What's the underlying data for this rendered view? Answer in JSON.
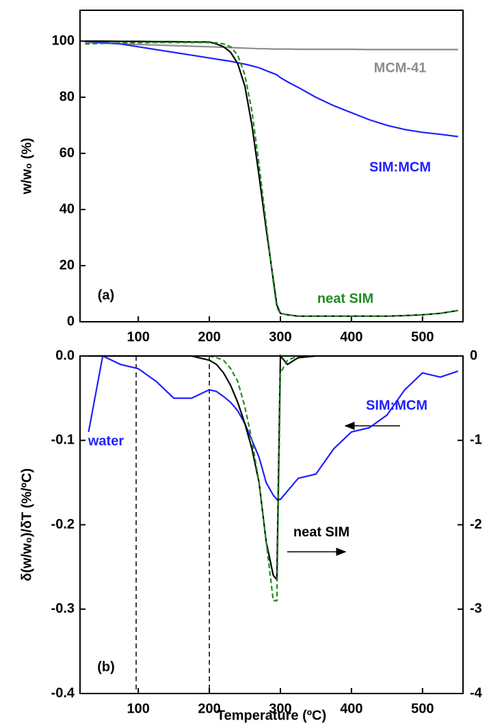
{
  "chart_data": [
    {
      "type": "line",
      "ylabel": "w/w₀ (%)",
      "panel_label": "(a)",
      "x": [
        25,
        50,
        75,
        100,
        125,
        150,
        175,
        200,
        210,
        220,
        230,
        240,
        250,
        260,
        270,
        280,
        290,
        295,
        300,
        310,
        325,
        350,
        375,
        400,
        425,
        450,
        475,
        500,
        525,
        550
      ],
      "xlim": [
        18,
        557
      ],
      "xticks": [
        100,
        200,
        300,
        400,
        500
      ],
      "ylim": [
        0,
        111
      ],
      "yticks": [
        0,
        20,
        40,
        60,
        80,
        100
      ],
      "series": [
        {
          "name": "MCM-41",
          "color": "#8c8c8c",
          "values": [
            99.5,
            99.3,
            99,
            98.8,
            98.6,
            98.4,
            98.2,
            98,
            97.9,
            97.8,
            97.7,
            97.6,
            97.5,
            97.4,
            97.3,
            97.3,
            97.2,
            97.2,
            97.2,
            97.2,
            97.1,
            97.1,
            97.1,
            97.1,
            97,
            97,
            97,
            97,
            97,
            97
          ]
        },
        {
          "name": "SIM:MCM",
          "color": "#1f1fff",
          "values": [
            100,
            99.5,
            99,
            98,
            97,
            96,
            95,
            94,
            93.6,
            93.2,
            92.8,
            92.3,
            91.8,
            91.2,
            90.5,
            89.5,
            88.5,
            88,
            87,
            85.5,
            83.5,
            80,
            77,
            74.5,
            72,
            70,
            68.5,
            67.5,
            66.8,
            66
          ]
        },
        {
          "color": "#000000",
          "values": [
            100,
            100,
            99.9,
            99.9,
            99.8,
            99.8,
            99.7,
            99.7,
            99,
            98,
            96,
            92,
            84,
            70,
            52,
            33,
            15,
            6,
            3,
            2.5,
            2,
            2,
            2,
            2,
            2,
            2,
            2.2,
            2.5,
            3,
            4
          ]
        },
        {
          "name": "neat SIM",
          "color": "#1e8c1e",
          "dashed": true,
          "values": [
            99,
            99.2,
            99.3,
            99.4,
            99.5,
            99.5,
            99.5,
            99.5,
            99.4,
            99,
            98,
            95,
            88,
            75,
            56,
            35,
            14,
            5,
            3,
            2.5,
            2,
            2,
            2,
            2,
            2,
            2,
            2.2,
            2.5,
            3,
            4
          ]
        }
      ]
    },
    {
      "type": "line",
      "ylabel": "δ(w/w₀)/δT (%/ºC)",
      "xlabel": "Temperature (ºC)",
      "panel_label": "(b)",
      "annotations": [
        "water"
      ],
      "x": [
        30,
        50,
        75,
        100,
        125,
        150,
        175,
        200,
        210,
        220,
        230,
        240,
        250,
        260,
        270,
        280,
        290,
        295,
        300,
        310,
        325,
        350,
        375,
        400,
        425,
        450,
        475,
        500,
        525,
        550
      ],
      "xlim": [
        18,
        557
      ],
      "xticks": [
        100,
        200,
        300,
        400,
        500
      ],
      "ylim": [
        -0.4,
        0
      ],
      "yticks": [
        {
          "value": 0,
          "label": "0.0"
        },
        -0.1,
        -0.2,
        -0.3,
        -0.4
      ],
      "y2lim": [
        -4,
        0
      ],
      "y2ticks": [
        0,
        -1,
        -2,
        -3,
        -4
      ],
      "vlines": [
        97,
        200
      ],
      "series": [
        {
          "name": "SIM:MCM",
          "color": "#1f1fff",
          "values": [
            -0.09,
            0,
            -0.01,
            -0.015,
            -0.03,
            -0.05,
            -0.05,
            -0.04,
            -0.042,
            -0.048,
            -0.055,
            -0.065,
            -0.08,
            -0.1,
            -0.12,
            -0.15,
            -0.165,
            -0.17,
            -0.17,
            -0.16,
            -0.145,
            -0.14,
            -0.11,
            -0.09,
            -0.085,
            -0.07,
            -0.04,
            -0.02,
            -0.025,
            -0.018
          ]
        },
        {
          "name": "neat SIM",
          "color": "#000000",
          "axis": "y2",
          "values": [
            0,
            0,
            0,
            0,
            0,
            0,
            0,
            -0.05,
            -0.1,
            -0.2,
            -0.35,
            -0.55,
            -0.8,
            -1.1,
            -1.5,
            -2.2,
            -2.6,
            -2.65,
            0,
            -0.1,
            -0.02,
            0,
            0,
            0,
            0,
            0,
            0,
            0,
            0,
            0
          ]
        },
        {
          "color": "#1e8c1e",
          "axis": "y2",
          "dashed": true,
          "values": [
            0,
            0,
            0,
            0,
            0,
            0,
            0,
            0,
            -0.02,
            -0.05,
            -0.15,
            -0.3,
            -0.6,
            -1,
            -1.5,
            -2.2,
            -2.9,
            -2.9,
            -0.2,
            -0.05,
            0,
            0,
            0,
            0,
            0,
            0,
            0,
            0,
            0,
            0
          ]
        }
      ]
    }
  ]
}
